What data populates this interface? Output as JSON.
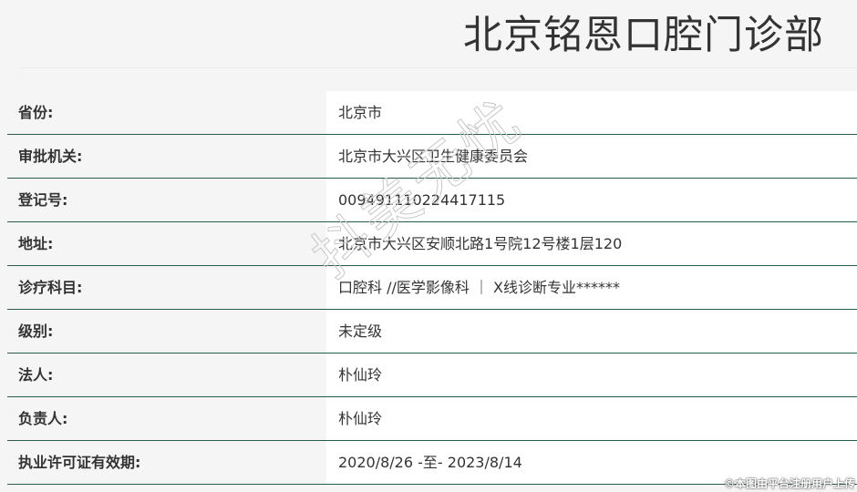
{
  "title": "北京铭恩口腔门诊部",
  "rows": [
    {
      "label": "省份:",
      "value": "北京市"
    },
    {
      "label": "审批机关:",
      "value": "北京市大兴区卫生健康委员会"
    },
    {
      "label": "登记号:",
      "value": "009491110224417115"
    },
    {
      "label": "地址:",
      "value": "北京市大兴区安顺北路1号院12号楼1层120"
    },
    {
      "label": "诊疗科目:",
      "value": "口腔科 //医学影像科 ｜ X线诊断专业******"
    },
    {
      "label": "级别:",
      "value": "未定级"
    },
    {
      "label": "法人:",
      "value": "朴仙玲"
    },
    {
      "label": "负责人:",
      "value": "朴仙玲"
    },
    {
      "label": "执业许可证有效期:",
      "value": "2020/8/26 -至- 2023/8/14"
    }
  ],
  "watermark": "抖美无忧",
  "copyright": "©本图由平台注册用户上传"
}
